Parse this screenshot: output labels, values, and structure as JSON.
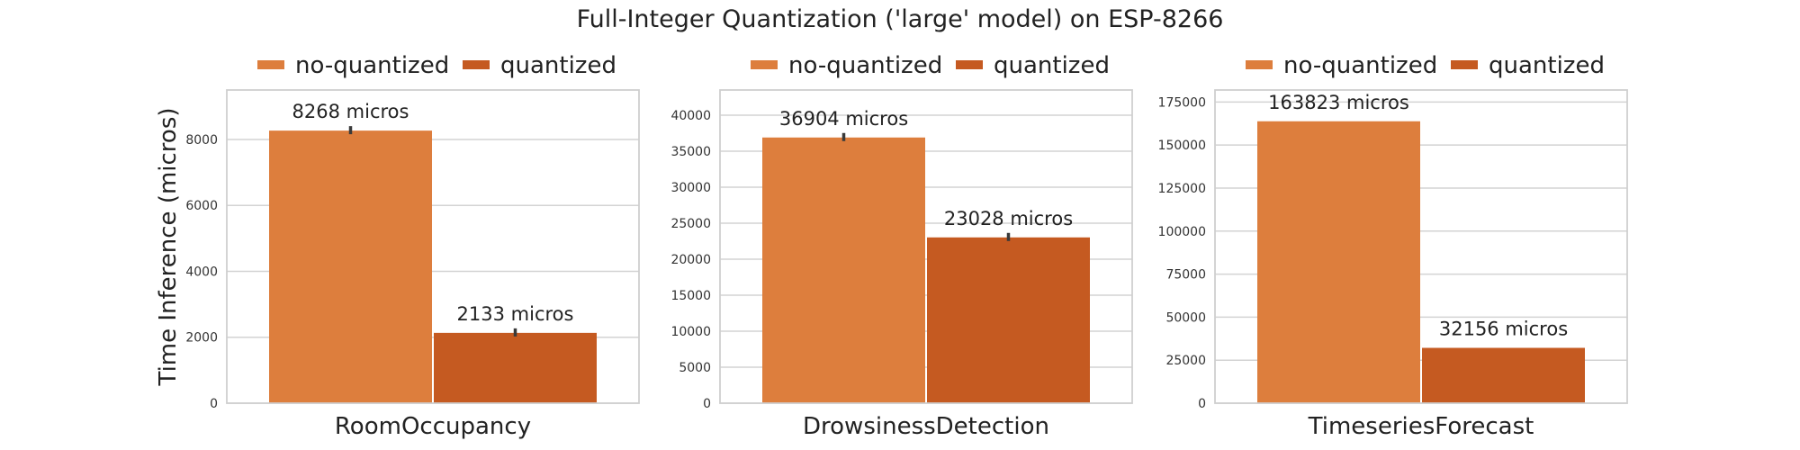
{
  "title": "Full-Integer Quantization ('large' model) on ESP-8266",
  "colors": {
    "no-quantized": "#dd7e3d",
    "quantized": "#c55a21",
    "error_bar": "#3a3a3a",
    "grid": "#d3d3d3"
  },
  "chart_data": [
    {
      "type": "bar",
      "categories": [
        "RoomOccupancy"
      ],
      "series": [
        {
          "name": "no-quantized",
          "values": [
            8268
          ],
          "label": "8268 micros"
        },
        {
          "name": "quantized",
          "values": [
            2133
          ],
          "label": "2133 micros"
        }
      ],
      "ylabel": "Time Inference (micros)",
      "ylim": [
        0,
        9500
      ],
      "yticks": [
        0,
        2000,
        4000,
        6000,
        8000
      ],
      "error_bars": true,
      "grid": true,
      "legend": "top"
    },
    {
      "type": "bar",
      "categories": [
        "DrowsinessDetection"
      ],
      "series": [
        {
          "name": "no-quantized",
          "values": [
            36904
          ],
          "label": "36904 micros"
        },
        {
          "name": "quantized",
          "values": [
            23028
          ],
          "label": "23028 micros"
        }
      ],
      "ylabel": "",
      "ylim": [
        0,
        43500
      ],
      "yticks": [
        0,
        5000,
        10000,
        15000,
        20000,
        25000,
        30000,
        35000,
        40000
      ],
      "error_bars": true,
      "grid": true,
      "legend": "top"
    },
    {
      "type": "bar",
      "categories": [
        "TimeseriesForecast"
      ],
      "series": [
        {
          "name": "no-quantized",
          "values": [
            163823
          ],
          "label": "163823 micros"
        },
        {
          "name": "quantized",
          "values": [
            32156
          ],
          "label": "32156 micros"
        }
      ],
      "ylabel": "",
      "ylim": [
        0,
        182000
      ],
      "yticks": [
        0,
        25000,
        50000,
        75000,
        100000,
        125000,
        150000,
        175000
      ],
      "error_bars": false,
      "grid": true,
      "legend": "top"
    }
  ]
}
